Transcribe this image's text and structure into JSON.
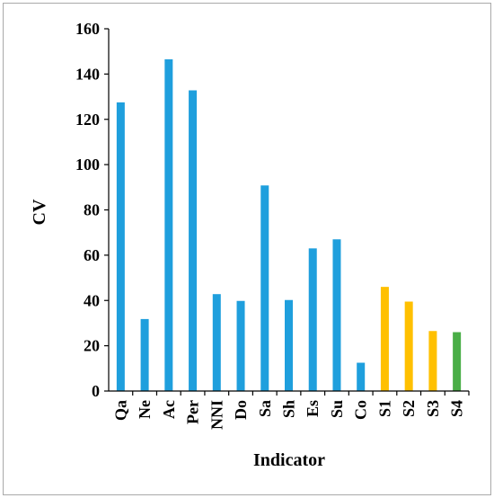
{
  "chart_data": {
    "type": "bar",
    "title": "",
    "xlabel": "Indicator",
    "ylabel": "CV",
    "ylim": [
      0,
      160
    ],
    "yticks": [
      0,
      20,
      40,
      60,
      80,
      100,
      120,
      140,
      160
    ],
    "grid": false,
    "legend": "none",
    "categories": [
      "Qa",
      "Ne",
      "Ac",
      "Per",
      "NNI",
      "Do",
      "Sa",
      "Sh",
      "Es",
      "Su",
      "Co",
      "S1",
      "S2",
      "S3",
      "S4"
    ],
    "values": [
      127.5,
      31.8,
      146.5,
      132.8,
      42.8,
      39.8,
      90.8,
      40.2,
      63.0,
      67.0,
      12.5,
      46.0,
      39.5,
      26.5,
      26.0
    ],
    "colors": [
      "#1f9fdd",
      "#1f9fdd",
      "#1f9fdd",
      "#1f9fdd",
      "#1f9fdd",
      "#1f9fdd",
      "#1f9fdd",
      "#1f9fdd",
      "#1f9fdd",
      "#1f9fdd",
      "#1f9fdd",
      "#ffc000",
      "#ffc000",
      "#ffc000",
      "#4aae47"
    ]
  }
}
